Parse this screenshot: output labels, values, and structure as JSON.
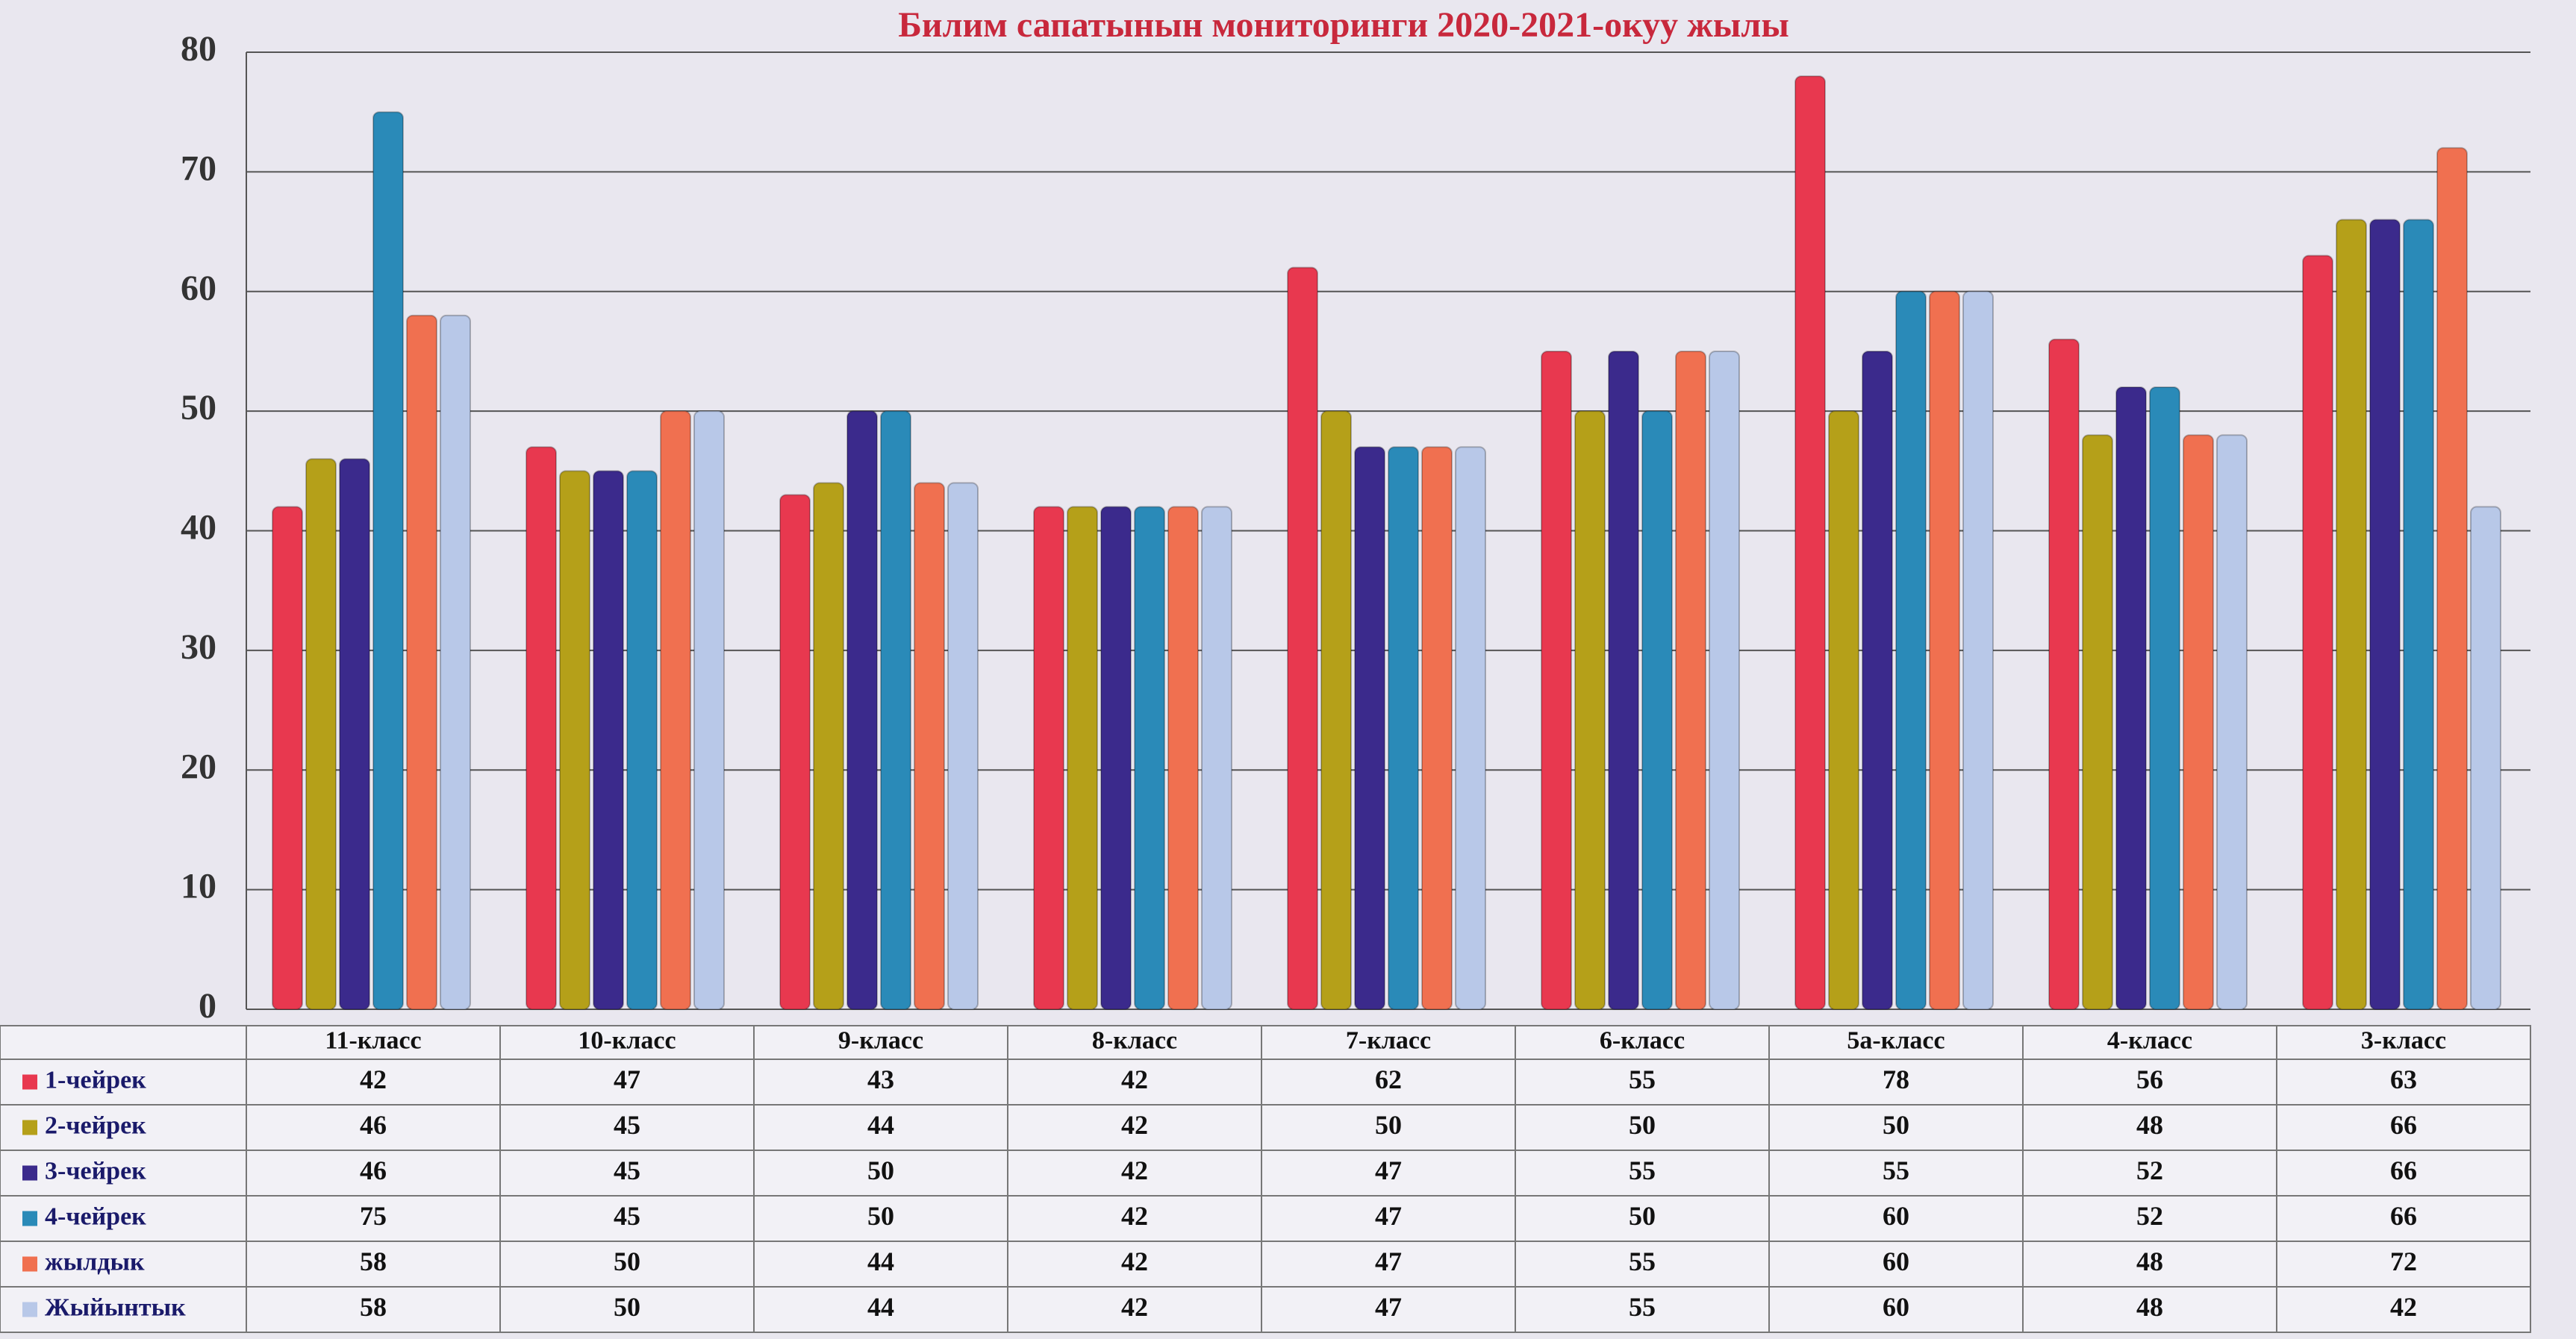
{
  "chart_data": {
    "type": "bar",
    "title": "Билим сапатынын мониторинги 2020-2021-окуу жылы",
    "categories": [
      "11-класс",
      "10-класс",
      "9-класс",
      "8-класс",
      "7-класс",
      "6-класс",
      "5а-класс",
      "4-класс",
      "3-класс"
    ],
    "series": [
      {
        "name": "1-чейрек",
        "color": "#e8384f",
        "values": [
          42,
          47,
          43,
          42,
          62,
          55,
          78,
          56,
          63
        ]
      },
      {
        "name": "2-чейрек",
        "color": "#b5a019",
        "values": [
          46,
          45,
          44,
          42,
          50,
          50,
          50,
          48,
          66
        ]
      },
      {
        "name": "3-чейрек",
        "color": "#3b2a8c",
        "values": [
          46,
          45,
          50,
          42,
          47,
          55,
          55,
          52,
          66
        ]
      },
      {
        "name": "4-чейрек",
        "color": "#2a8ab8",
        "values": [
          75,
          45,
          50,
          42,
          47,
          50,
          60,
          52,
          66
        ]
      },
      {
        "name": "жылдык",
        "color": "#f07050",
        "values": [
          58,
          50,
          44,
          42,
          47,
          55,
          60,
          48,
          72
        ]
      },
      {
        "name": "Жыйынтык",
        "color": "#b8c8e8",
        "values": [
          58,
          50,
          44,
          42,
          47,
          55,
          60,
          48,
          42
        ]
      }
    ],
    "ylim": [
      0,
      80
    ],
    "yticks": [
      0,
      10,
      20,
      30,
      40,
      50,
      60,
      70,
      80
    ],
    "grid": true
  }
}
